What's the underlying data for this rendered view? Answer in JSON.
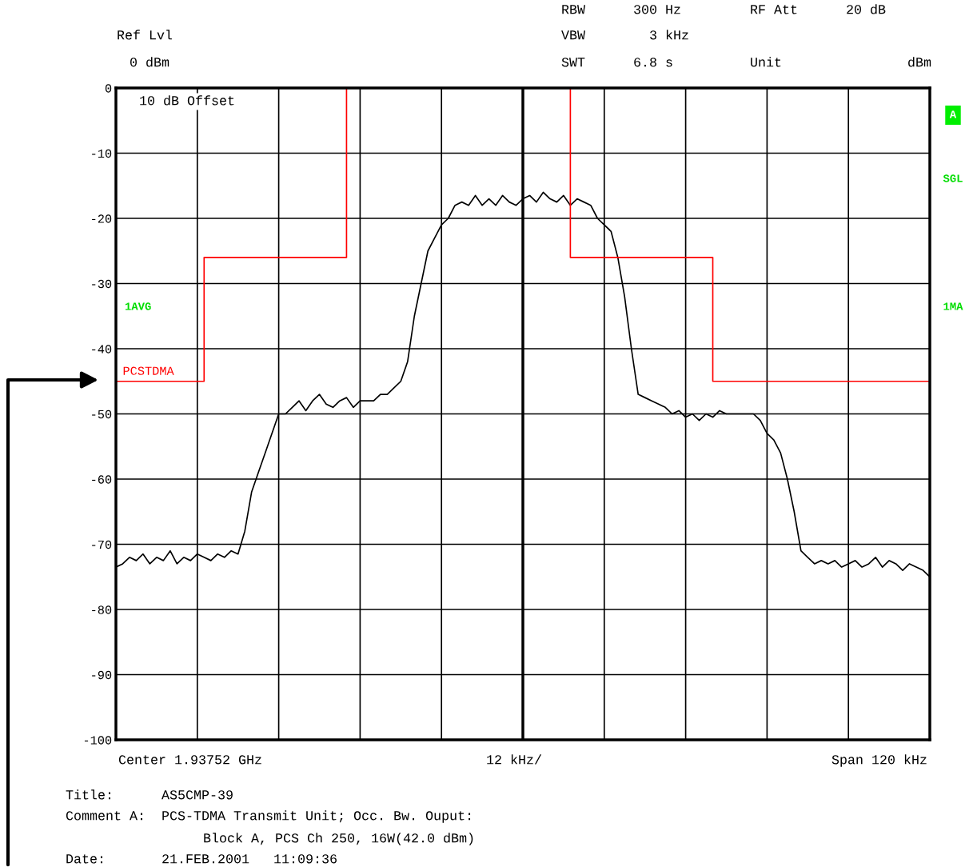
{
  "chart_data": {
    "type": "line",
    "categories": [
      null,
      null,
      null,
      null,
      null,
      null,
      null,
      null,
      null,
      null,
      null,
      null,
      null,
      null,
      null,
      null,
      null,
      null,
      null,
      null,
      null,
      null,
      null,
      null,
      null,
      null,
      null,
      null,
      null,
      null,
      null,
      null,
      null,
      null,
      null,
      null,
      null,
      null,
      null,
      null,
      null,
      null,
      null,
      null,
      null,
      null,
      null,
      null,
      null,
      null,
      null,
      null,
      null,
      null,
      null,
      null,
      null,
      null,
      null,
      null,
      null,
      null,
      null,
      null,
      null,
      null,
      null,
      null,
      null,
      null,
      null,
      null,
      null,
      null,
      null,
      null,
      null,
      null,
      null,
      null,
      null,
      null,
      null,
      null,
      null,
      null,
      null,
      null,
      null,
      null,
      null,
      null,
      null,
      null,
      null,
      null,
      null,
      null,
      null,
      null,
      null,
      null,
      null,
      null,
      null,
      null,
      null,
      null,
      null,
      null,
      null,
      null,
      null,
      null,
      null,
      null,
      null,
      null,
      null,
      null,
      null
    ],
    "series": [
      {
        "color": "#000000",
        "values": [
          -73.5,
          -73,
          -72,
          -72.5,
          -71.5,
          -73,
          -72,
          -72.5,
          -71,
          -73,
          -72,
          -72.5,
          -71.5,
          -72,
          -72.5,
          -71.5,
          -72,
          -71,
          -71.5,
          -68,
          -62,
          -59,
          -56,
          -53,
          -50,
          -50,
          -49,
          -48,
          -49.5,
          -48,
          -47,
          -48.5,
          -49,
          -48,
          -47.5,
          -49,
          -48,
          -48,
          -48,
          -47,
          -47,
          -46,
          -45,
          -42,
          -35,
          -30,
          -25,
          -23,
          -21,
          -20,
          -18,
          -17.5,
          -18,
          -16.5,
          -18,
          -17,
          -18,
          -16.5,
          -17.5,
          -18,
          -17,
          -16.5,
          -17.5,
          -16,
          -17,
          -17.5,
          -16.5,
          -18,
          -17,
          -17.5,
          -18,
          -20,
          -21,
          -22,
          -26,
          -32,
          -40,
          -47,
          -47.5,
          -48,
          -48.5,
          -49,
          -50,
          -49.5,
          -50.5,
          -50,
          -51,
          -50,
          -50.5,
          -49.5,
          -50,
          -50,
          -50,
          -50,
          -50,
          -51,
          -53,
          -54,
          -56,
          -60,
          -65,
          -71,
          -72,
          -73,
          -72.5,
          -73,
          -72.5,
          -73.5,
          -73,
          -72.5,
          -73.5,
          -73,
          -72,
          -73.5,
          -72.5,
          -73,
          -74,
          -73,
          -73.5,
          -74,
          -75
        ]
      },
      {
        "name": "PCSTDMA",
        "color": "#ff0000",
        "type": "step",
        "values": [
          -45,
          -45,
          -45,
          -45,
          -45,
          -45,
          -45,
          -45,
          -45,
          -45,
          -45,
          -45,
          -45,
          -26,
          -26,
          -26,
          -26,
          -26,
          -26,
          -26,
          -26,
          -26,
          -26,
          -26,
          -26,
          -26,
          -26,
          -26,
          -26,
          -26,
          -26,
          -26,
          -26,
          -26,
          0,
          0,
          0,
          0,
          0,
          0,
          0,
          0,
          0,
          0,
          0,
          0,
          0,
          0,
          0,
          0,
          0,
          0,
          0,
          0,
          0,
          0,
          0,
          0,
          0,
          0,
          0,
          0,
          0,
          0,
          0,
          0,
          0,
          -26,
          -26,
          -26,
          -26,
          -26,
          -26,
          -26,
          -26,
          -26,
          -26,
          -26,
          -26,
          -26,
          -26,
          -26,
          -26,
          -26,
          -26,
          -26,
          -26,
          -26,
          -45,
          -45,
          -45,
          -45,
          -45,
          -45,
          -45,
          -45,
          -45,
          -45,
          -45,
          -45,
          -45,
          -45,
          -45,
          -45,
          -45,
          -45,
          -45,
          -45,
          -45,
          -45,
          -45,
          -45,
          -45,
          -45,
          -45,
          -45,
          -45,
          -45,
          -45,
          -45,
          -45
        ]
      }
    ],
    "ylim": [
      -100,
      0
    ],
    "yticks": [
      -100,
      -90,
      -80,
      -70,
      -60,
      -50,
      -40,
      -30,
      -20,
      -10,
      0
    ],
    "grid": true,
    "legend": false,
    "annotations": [
      "Ref Lvl",
      "0 dBm",
      "RBW      300 Hz",
      "VBW        3 kHz",
      "SWT      6.8 s",
      "RF Att      20 dB",
      "Unit",
      "dBm",
      "10 dB Offset",
      "A",
      "SGL",
      "1AVG",
      "1MA",
      "Center 1.93752 GHz",
      "12 kHz/",
      "Span 120 kHz",
      "Title:      AS5CMP-39",
      "Comment A:  PCS-TDMA Transmit Unit; Occ. Bw. Ouput:",
      "Block A, PCS Ch 250, 16W(42.0 dBm)",
      "Date:       21.FEB.2001   11:09:36"
    ]
  }
}
